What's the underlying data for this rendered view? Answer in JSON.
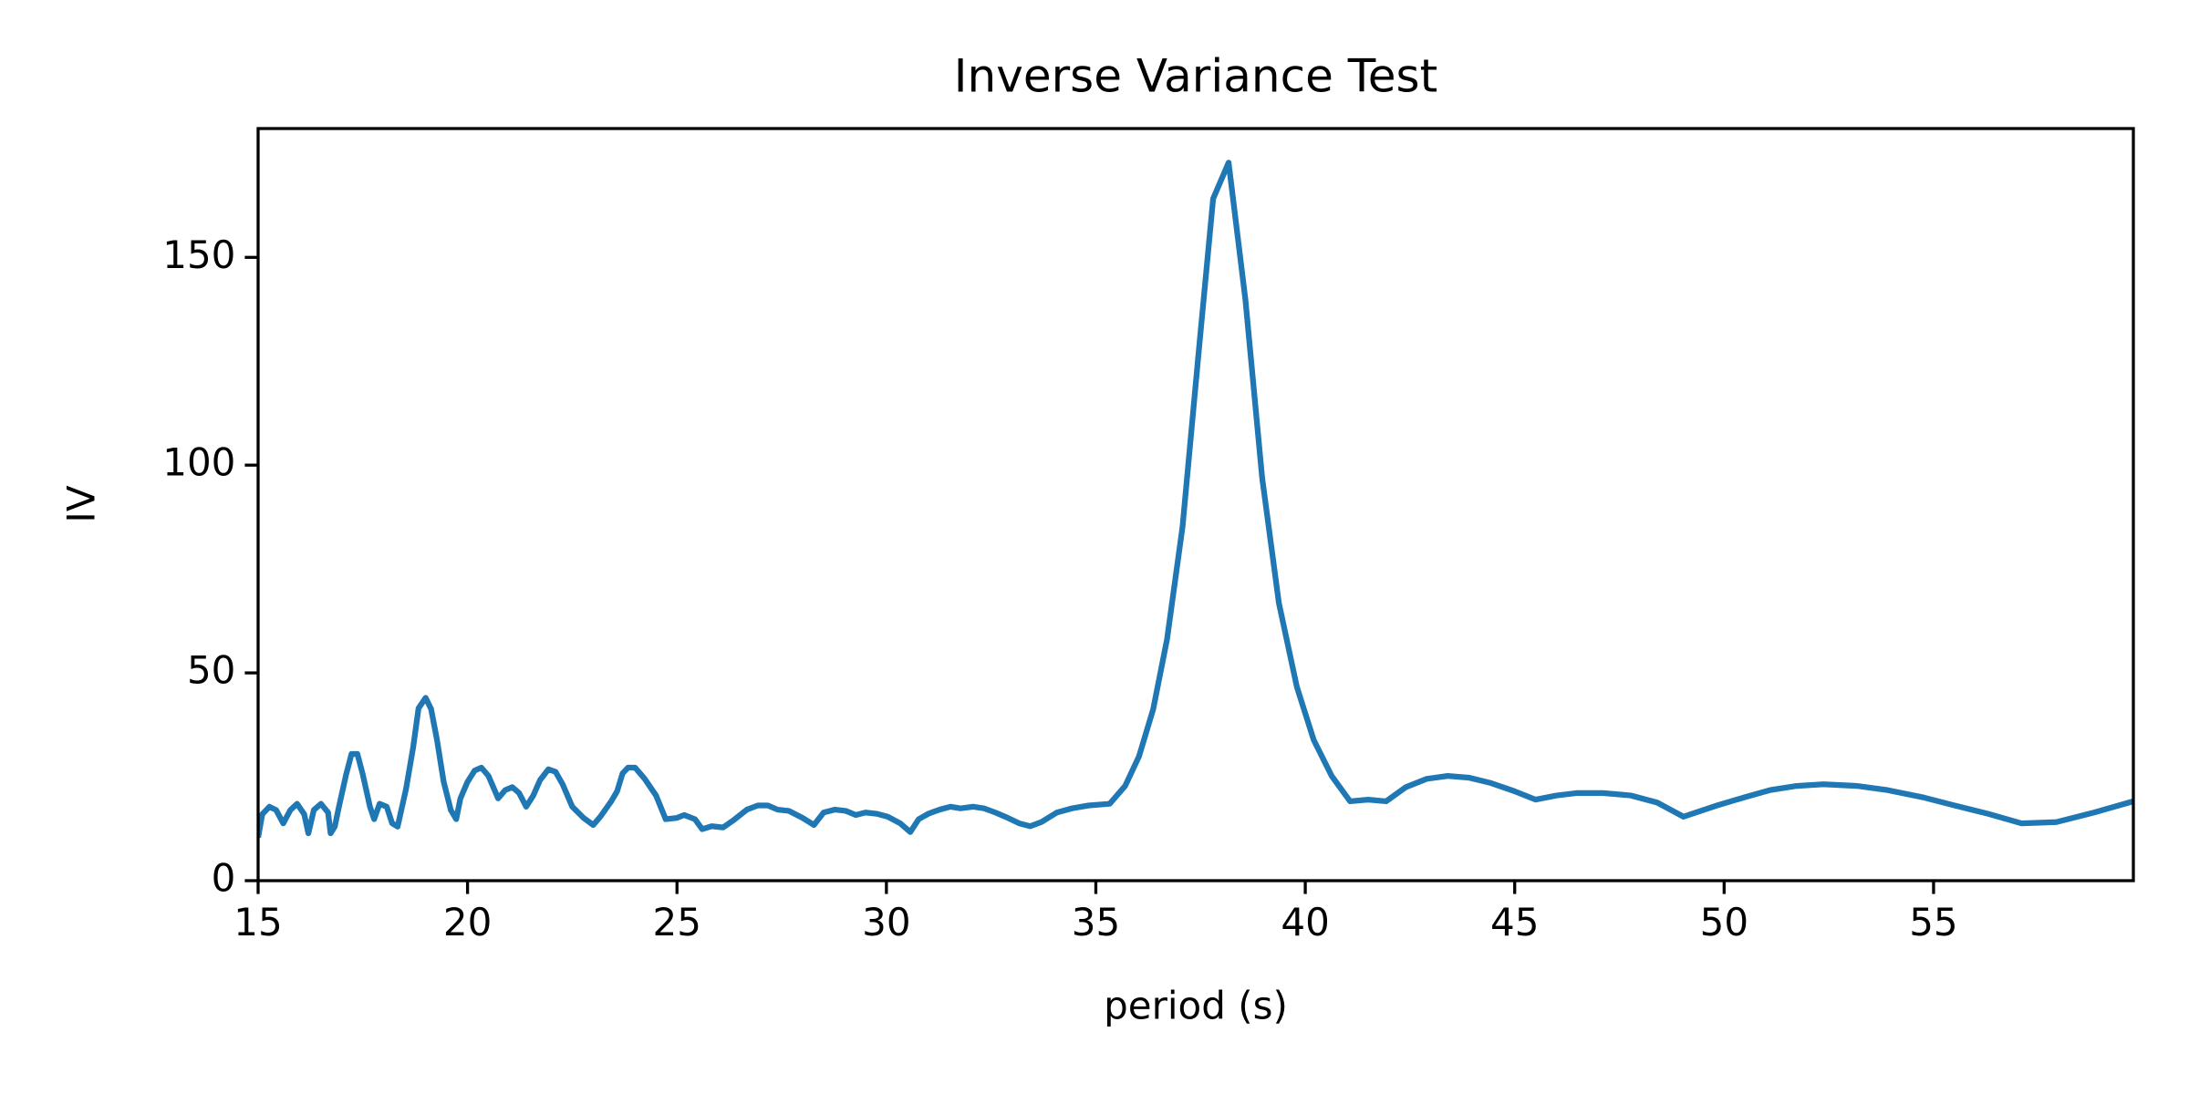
{
  "chart_data": {
    "type": "line",
    "title": "Inverse Variance Test",
    "xlabel": "period (s)",
    "ylabel": "IV",
    "xlim": [
      15,
      59.77
    ],
    "ylim": [
      0,
      181
    ],
    "xticks": [
      15,
      20,
      25,
      30,
      35,
      40,
      45,
      50,
      55
    ],
    "yticks": [
      0,
      50,
      100,
      150
    ],
    "grid": false,
    "x": [
      15,
      15.1,
      15.27,
      15.43,
      15.6,
      15.77,
      15.93,
      16.1,
      16.2,
      16.33,
      16.5,
      16.67,
      16.73,
      16.83,
      16.93,
      17.1,
      17.23,
      17.37,
      17.5,
      17.67,
      17.77,
      17.9,
      18.07,
      18.2,
      18.33,
      18.53,
      18.7,
      18.83,
      19,
      19.13,
      19.27,
      19.43,
      19.6,
      19.73,
      19.83,
      20,
      20.17,
      20.33,
      20.5,
      20.73,
      20.9,
      21.07,
      21.23,
      21.4,
      21.57,
      21.73,
      21.93,
      22.1,
      22.27,
      22.5,
      22.77,
      23,
      23.17,
      23.43,
      23.57,
      23.7,
      23.83,
      24,
      24.23,
      24.5,
      24.73,
      25,
      25.17,
      25.43,
      25.6,
      25.83,
      26.1,
      26.33,
      26.67,
      26.93,
      27.17,
      27.4,
      27.67,
      28,
      28.27,
      28.5,
      28.77,
      29.03,
      29.27,
      29.5,
      29.77,
      30.03,
      30.33,
      30.57,
      30.77,
      31,
      31.27,
      31.53,
      31.77,
      32.07,
      32.33,
      32.6,
      32.9,
      33.17,
      33.43,
      33.7,
      34.07,
      34.43,
      34.83,
      35.33,
      35.7,
      36.03,
      36.37,
      36.7,
      37.07,
      37.43,
      37.8,
      38.17,
      38.57,
      38.97,
      39.37,
      39.8,
      40.2,
      40.63,
      41.07,
      41.5,
      41.93,
      42.4,
      42.9,
      43.4,
      43.9,
      44.43,
      45,
      45.5,
      46,
      46.5,
      47.1,
      47.77,
      48.4,
      49.03,
      49.83,
      50.5,
      51.1,
      51.73,
      52.37,
      53.17,
      53.9,
      54.73,
      55.5,
      56.3,
      57.1,
      57.93,
      58.83,
      59.77
    ],
    "series": [
      {
        "name": "IV",
        "color": "#1f77b4",
        "values": [
          10.4,
          16,
          17.8,
          17,
          13.8,
          17,
          18.5,
          16,
          11.4,
          17,
          18.5,
          16.4,
          11.4,
          13,
          17.8,
          25.5,
          30.5,
          30.5,
          25.5,
          17.8,
          14.8,
          18.5,
          17.8,
          13.8,
          13,
          22,
          32,
          41.5,
          44,
          41.3,
          33.9,
          23.8,
          17,
          14.8,
          19.8,
          23.8,
          26.5,
          27.2,
          25.2,
          19.8,
          21.8,
          22.5,
          21.1,
          17.8,
          20.5,
          24.2,
          26.8,
          26.2,
          23.2,
          17.8,
          15.1,
          13.4,
          15.4,
          19.1,
          21.5,
          25.8,
          27.2,
          27.2,
          24.5,
          20.5,
          14.8,
          15.1,
          15.8,
          14.8,
          12.4,
          13.1,
          12.8,
          14.4,
          17.1,
          18.1,
          18.1,
          17.1,
          16.8,
          15.1,
          13.4,
          16.4,
          17.1,
          16.8,
          15.8,
          16.4,
          16.1,
          15.4,
          13.8,
          11.7,
          14.8,
          16.1,
          17.1,
          17.8,
          17.4,
          17.8,
          17.4,
          16.4,
          15.1,
          13.8,
          13.1,
          14.1,
          16.4,
          17.4,
          18.1,
          18.5,
          22.8,
          29.9,
          41.3,
          58.1,
          85.2,
          124.5,
          164.1,
          172.8,
          139.9,
          97,
          66.8,
          46.6,
          33.9,
          25.2,
          19.1,
          19.5,
          19.1,
          22.5,
          24.5,
          25.2,
          24.8,
          23.5,
          21.5,
          19.5,
          20.5,
          21.1,
          21.1,
          20.5,
          18.8,
          15.4,
          18.1,
          20.1,
          21.8,
          22.8,
          23.2,
          22.8,
          21.8,
          20.1,
          18.1,
          16.1,
          13.8,
          14.1,
          16.4,
          19.1
        ]
      }
    ]
  }
}
